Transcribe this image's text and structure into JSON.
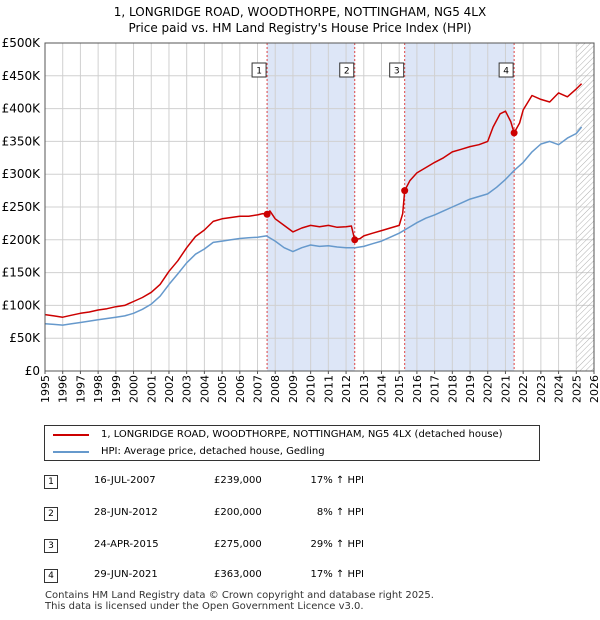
{
  "title_line1": "1, LONGRIDGE ROAD, WOODTHORPE, NOTTINGHAM, NG5 4LX",
  "title_line2": "Price paid vs. HM Land Registry's House Price Index (HPI)",
  "chart_data": {
    "type": "line",
    "title": "1, LONGRIDGE ROAD, WOODTHORPE, NOTTINGHAM, NG5 4LX — Price paid vs. HM Land Registry's House Price Index (HPI)",
    "xlabel": "",
    "ylabel": "",
    "xlim": [
      1995,
      2026
    ],
    "ylim": [
      0,
      500000
    ],
    "x_ticks": [
      "1995",
      "1996",
      "1997",
      "1998",
      "1999",
      "2000",
      "2001",
      "2002",
      "2003",
      "2004",
      "2005",
      "2006",
      "2007",
      "2008",
      "2009",
      "2010",
      "2011",
      "2012",
      "2013",
      "2014",
      "2015",
      "2016",
      "2017",
      "2018",
      "2019",
      "2020",
      "2021",
      "2022",
      "2023",
      "2024",
      "2025",
      "2026"
    ],
    "y_ticks": [
      {
        "value": 0,
        "label": "£0"
      },
      {
        "value": 50000,
        "label": "£50K"
      },
      {
        "value": 100000,
        "label": "£100K"
      },
      {
        "value": 150000,
        "label": "£150K"
      },
      {
        "value": 200000,
        "label": "£200K"
      },
      {
        "value": 250000,
        "label": "£250K"
      },
      {
        "value": 300000,
        "label": "£300K"
      },
      {
        "value": 350000,
        "label": "£350K"
      },
      {
        "value": 400000,
        "label": "£400K"
      },
      {
        "value": 450000,
        "label": "£450K"
      },
      {
        "value": 500000,
        "label": "£500K"
      }
    ],
    "grid": true,
    "shaded_ranges": [
      [
        2007.54,
        2012.49
      ],
      [
        2015.31,
        2021.49
      ]
    ],
    "hatched_from": 2025.0,
    "colors": {
      "property": "#cc0000",
      "hpi": "#6699cc",
      "shade": "#dde6f7",
      "marker_line": "#dd4444"
    },
    "series": [
      {
        "name": "1, LONGRIDGE ROAD, WOODTHORPE, NOTTINGHAM, NG5 4LX (detached house)",
        "color": "#cc0000",
        "x": [
          1995.0,
          1995.5,
          1996.0,
          1996.5,
          1997.0,
          1997.5,
          1998.0,
          1998.5,
          1999.0,
          1999.5,
          2000.0,
          2000.5,
          2001.0,
          2001.5,
          2002.0,
          2002.5,
          2003.0,
          2003.5,
          2004.0,
          2004.5,
          2005.0,
          2005.5,
          2006.0,
          2006.5,
          2007.0,
          2007.3,
          2007.54,
          2007.7,
          2008.0,
          2008.5,
          2009.0,
          2009.5,
          2010.0,
          2010.5,
          2011.0,
          2011.5,
          2012.0,
          2012.3,
          2012.49,
          2012.8,
          2013.0,
          2013.5,
          2014.0,
          2014.5,
          2015.0,
          2015.2,
          2015.31,
          2015.6,
          2016.0,
          2016.5,
          2017.0,
          2017.5,
          2018.0,
          2018.5,
          2019.0,
          2019.5,
          2020.0,
          2020.3,
          2020.7,
          2021.0,
          2021.3,
          2021.49,
          2021.8,
          2022.0,
          2022.5,
          2023.0,
          2023.5,
          2024.0,
          2024.5,
          2025.0,
          2025.3
        ],
        "y": [
          86000,
          84000,
          82000,
          85000,
          88000,
          90000,
          93000,
          95000,
          98000,
          100000,
          106000,
          112000,
          120000,
          132000,
          152000,
          168000,
          188000,
          205000,
          215000,
          228000,
          232000,
          234000,
          236000,
          236000,
          238000,
          240000,
          239000,
          244000,
          232000,
          222000,
          212000,
          218000,
          222000,
          220000,
          222000,
          219000,
          220000,
          221000,
          200000,
          202000,
          206000,
          210000,
          214000,
          218000,
          222000,
          240000,
          275000,
          290000,
          302000,
          310000,
          318000,
          325000,
          334000,
          338000,
          342000,
          345000,
          350000,
          372000,
          392000,
          396000,
          380000,
          363000,
          378000,
          398000,
          420000,
          414000,
          410000,
          424000,
          418000,
          430000,
          438000
        ]
      },
      {
        "name": "HPI: Average price, detached house, Gedling",
        "color": "#6699cc",
        "x": [
          1995.0,
          1995.5,
          1996.0,
          1996.5,
          1997.0,
          1997.5,
          1998.0,
          1998.5,
          1999.0,
          1999.5,
          2000.0,
          2000.5,
          2001.0,
          2001.5,
          2002.0,
          2002.5,
          2003.0,
          2003.5,
          2004.0,
          2004.5,
          2005.0,
          2005.5,
          2006.0,
          2006.5,
          2007.0,
          2007.5,
          2008.0,
          2008.5,
          2009.0,
          2009.5,
          2010.0,
          2010.5,
          2011.0,
          2011.5,
          2012.0,
          2012.5,
          2013.0,
          2013.5,
          2014.0,
          2014.5,
          2015.0,
          2015.5,
          2016.0,
          2016.5,
          2017.0,
          2017.5,
          2018.0,
          2018.5,
          2019.0,
          2019.5,
          2020.0,
          2020.5,
          2021.0,
          2021.5,
          2022.0,
          2022.5,
          2023.0,
          2023.5,
          2024.0,
          2024.5,
          2025.0,
          2025.3
        ],
        "y": [
          72000,
          71000,
          70000,
          72000,
          74000,
          76000,
          78000,
          80000,
          82000,
          84000,
          88000,
          94000,
          102000,
          114000,
          132000,
          148000,
          165000,
          178000,
          186000,
          196000,
          198000,
          200000,
          202000,
          203000,
          204000,
          206000,
          198000,
          188000,
          182000,
          188000,
          192000,
          190000,
          191000,
          189000,
          188000,
          188000,
          190000,
          194000,
          198000,
          204000,
          210000,
          218000,
          226000,
          233000,
          238000,
          244000,
          250000,
          256000,
          262000,
          266000,
          270000,
          280000,
          292000,
          306000,
          318000,
          334000,
          346000,
          350000,
          345000,
          355000,
          362000,
          372000
        ]
      }
    ],
    "sales": [
      {
        "label": "1",
        "date": "16-JUL-2007",
        "x": 2007.54,
        "price": 239000,
        "price_label": "£239,000",
        "hpi_change": "17% ↑ HPI"
      },
      {
        "label": "2",
        "date": "28-JUN-2012",
        "x": 2012.49,
        "price": 200000,
        "price_label": "£200,000",
        "hpi_change": "8% ↑ HPI"
      },
      {
        "label": "3",
        "date": "24-APR-2015",
        "x": 2015.31,
        "price": 275000,
        "price_label": "£275,000",
        "hpi_change": "29% ↑ HPI"
      },
      {
        "label": "4",
        "date": "29-JUN-2021",
        "x": 2021.49,
        "price": 363000,
        "price_label": "£363,000",
        "hpi_change": "17% ↑ HPI"
      }
    ]
  },
  "legend": {
    "property_label": "1, LONGRIDGE ROAD, WOODTHORPE, NOTTINGHAM, NG5 4LX (detached house)",
    "hpi_label": "HPI: Average price, detached house, Gedling"
  },
  "footer": {
    "line1": "Contains HM Land Registry data © Crown copyright and database right 2025.",
    "line2": "This data is licensed under the Open Government Licence v3.0."
  }
}
